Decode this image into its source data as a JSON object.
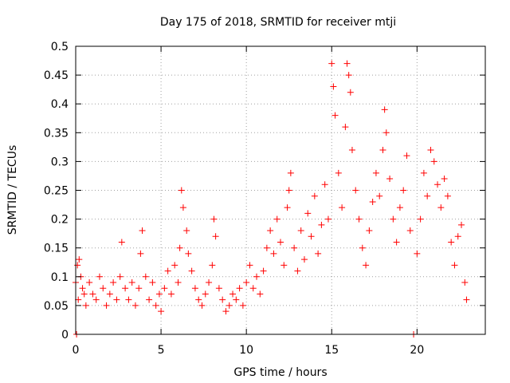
{
  "chart_data": {
    "type": "scatter",
    "title": "Day 175 of 2018, SRMTID for receiver mtji",
    "xlabel": "GPS time / hours",
    "ylabel": "SRMTID / TECUs",
    "xlim": [
      0,
      24
    ],
    "ylim": [
      0,
      0.5
    ],
    "xticks": [
      0,
      5,
      10,
      15,
      20
    ],
    "xtick_labels": [
      "0",
      "5",
      "10",
      "15",
      "20"
    ],
    "yticks": [
      0,
      0.05,
      0.1,
      0.15,
      0.2,
      0.25,
      0.3,
      0.35,
      0.4,
      0.45,
      0.5
    ],
    "ytick_labels": [
      "0",
      "0.05",
      "0.1",
      "0.15",
      "0.2",
      "0.25",
      "0.3",
      "0.35",
      "0.4",
      "0.45",
      "0.5"
    ],
    "grid": true,
    "marker": "+",
    "series": [
      {
        "name": "SRMTID",
        "color": "#ff0000",
        "points": [
          [
            0.0,
            0.09
          ],
          [
            0.05,
            0.0
          ],
          [
            0.1,
            0.12
          ],
          [
            0.15,
            0.06
          ],
          [
            0.2,
            0.13
          ],
          [
            0.3,
            0.1
          ],
          [
            0.4,
            0.08
          ],
          [
            0.5,
            0.07
          ],
          [
            0.6,
            0.05
          ],
          [
            0.8,
            0.09
          ],
          [
            1.0,
            0.07
          ],
          [
            1.2,
            0.06
          ],
          [
            1.4,
            0.1
          ],
          [
            1.6,
            0.08
          ],
          [
            1.8,
            0.05
          ],
          [
            2.0,
            0.07
          ],
          [
            2.2,
            0.09
          ],
          [
            2.4,
            0.06
          ],
          [
            2.6,
            0.1
          ],
          [
            2.7,
            0.16
          ],
          [
            2.9,
            0.08
          ],
          [
            3.1,
            0.06
          ],
          [
            3.3,
            0.09
          ],
          [
            3.5,
            0.05
          ],
          [
            3.7,
            0.08
          ],
          [
            3.8,
            0.14
          ],
          [
            3.9,
            0.18
          ],
          [
            4.1,
            0.1
          ],
          [
            4.3,
            0.06
          ],
          [
            4.5,
            0.09
          ],
          [
            4.7,
            0.05
          ],
          [
            4.9,
            0.07
          ],
          [
            5.0,
            0.04
          ],
          [
            5.2,
            0.08
          ],
          [
            5.4,
            0.11
          ],
          [
            5.6,
            0.07
          ],
          [
            5.8,
            0.12
          ],
          [
            6.0,
            0.09
          ],
          [
            6.1,
            0.15
          ],
          [
            6.2,
            0.25
          ],
          [
            6.3,
            0.22
          ],
          [
            6.5,
            0.18
          ],
          [
            6.6,
            0.14
          ],
          [
            6.8,
            0.11
          ],
          [
            7.0,
            0.08
          ],
          [
            7.2,
            0.06
          ],
          [
            7.4,
            0.05
          ],
          [
            7.6,
            0.07
          ],
          [
            7.8,
            0.09
          ],
          [
            8.0,
            0.12
          ],
          [
            8.1,
            0.2
          ],
          [
            8.2,
            0.17
          ],
          [
            8.4,
            0.08
          ],
          [
            8.6,
            0.06
          ],
          [
            8.8,
            0.04
          ],
          [
            9.0,
            0.05
          ],
          [
            9.2,
            0.07
          ],
          [
            9.4,
            0.06
          ],
          [
            9.6,
            0.08
          ],
          [
            9.8,
            0.05
          ],
          [
            10.0,
            0.09
          ],
          [
            10.2,
            0.12
          ],
          [
            10.4,
            0.08
          ],
          [
            10.6,
            0.1
          ],
          [
            10.8,
            0.07
          ],
          [
            11.0,
            0.11
          ],
          [
            11.2,
            0.15
          ],
          [
            11.4,
            0.18
          ],
          [
            11.6,
            0.14
          ],
          [
            11.8,
            0.2
          ],
          [
            12.0,
            0.16
          ],
          [
            12.2,
            0.12
          ],
          [
            12.4,
            0.22
          ],
          [
            12.5,
            0.25
          ],
          [
            12.6,
            0.28
          ],
          [
            12.8,
            0.15
          ],
          [
            13.0,
            0.11
          ],
          [
            13.2,
            0.18
          ],
          [
            13.4,
            0.13
          ],
          [
            13.6,
            0.21
          ],
          [
            13.8,
            0.17
          ],
          [
            14.0,
            0.24
          ],
          [
            14.2,
            0.14
          ],
          [
            14.4,
            0.19
          ],
          [
            14.6,
            0.26
          ],
          [
            14.8,
            0.2
          ],
          [
            15.0,
            0.47
          ],
          [
            15.1,
            0.43
          ],
          [
            15.2,
            0.38
          ],
          [
            15.4,
            0.28
          ],
          [
            15.6,
            0.22
          ],
          [
            15.8,
            0.36
          ],
          [
            15.9,
            0.47
          ],
          [
            16.0,
            0.45
          ],
          [
            16.1,
            0.42
          ],
          [
            16.2,
            0.32
          ],
          [
            16.4,
            0.25
          ],
          [
            16.6,
            0.2
          ],
          [
            16.8,
            0.15
          ],
          [
            17.0,
            0.12
          ],
          [
            17.2,
            0.18
          ],
          [
            17.4,
            0.23
          ],
          [
            17.6,
            0.28
          ],
          [
            17.8,
            0.24
          ],
          [
            18.0,
            0.32
          ],
          [
            18.1,
            0.39
          ],
          [
            18.2,
            0.35
          ],
          [
            18.4,
            0.27
          ],
          [
            18.6,
            0.2
          ],
          [
            18.8,
            0.16
          ],
          [
            19.0,
            0.22
          ],
          [
            19.2,
            0.25
          ],
          [
            19.4,
            0.31
          ],
          [
            19.6,
            0.18
          ],
          [
            19.8,
            0.0
          ],
          [
            20.0,
            0.14
          ],
          [
            20.2,
            0.2
          ],
          [
            20.4,
            0.28
          ],
          [
            20.6,
            0.24
          ],
          [
            20.8,
            0.32
          ],
          [
            21.0,
            0.3
          ],
          [
            21.2,
            0.26
          ],
          [
            21.4,
            0.22
          ],
          [
            21.6,
            0.27
          ],
          [
            21.8,
            0.24
          ],
          [
            22.0,
            0.16
          ],
          [
            22.2,
            0.12
          ],
          [
            22.4,
            0.17
          ],
          [
            22.6,
            0.19
          ],
          [
            22.8,
            0.09
          ],
          [
            22.9,
            0.06
          ]
        ]
      }
    ]
  }
}
